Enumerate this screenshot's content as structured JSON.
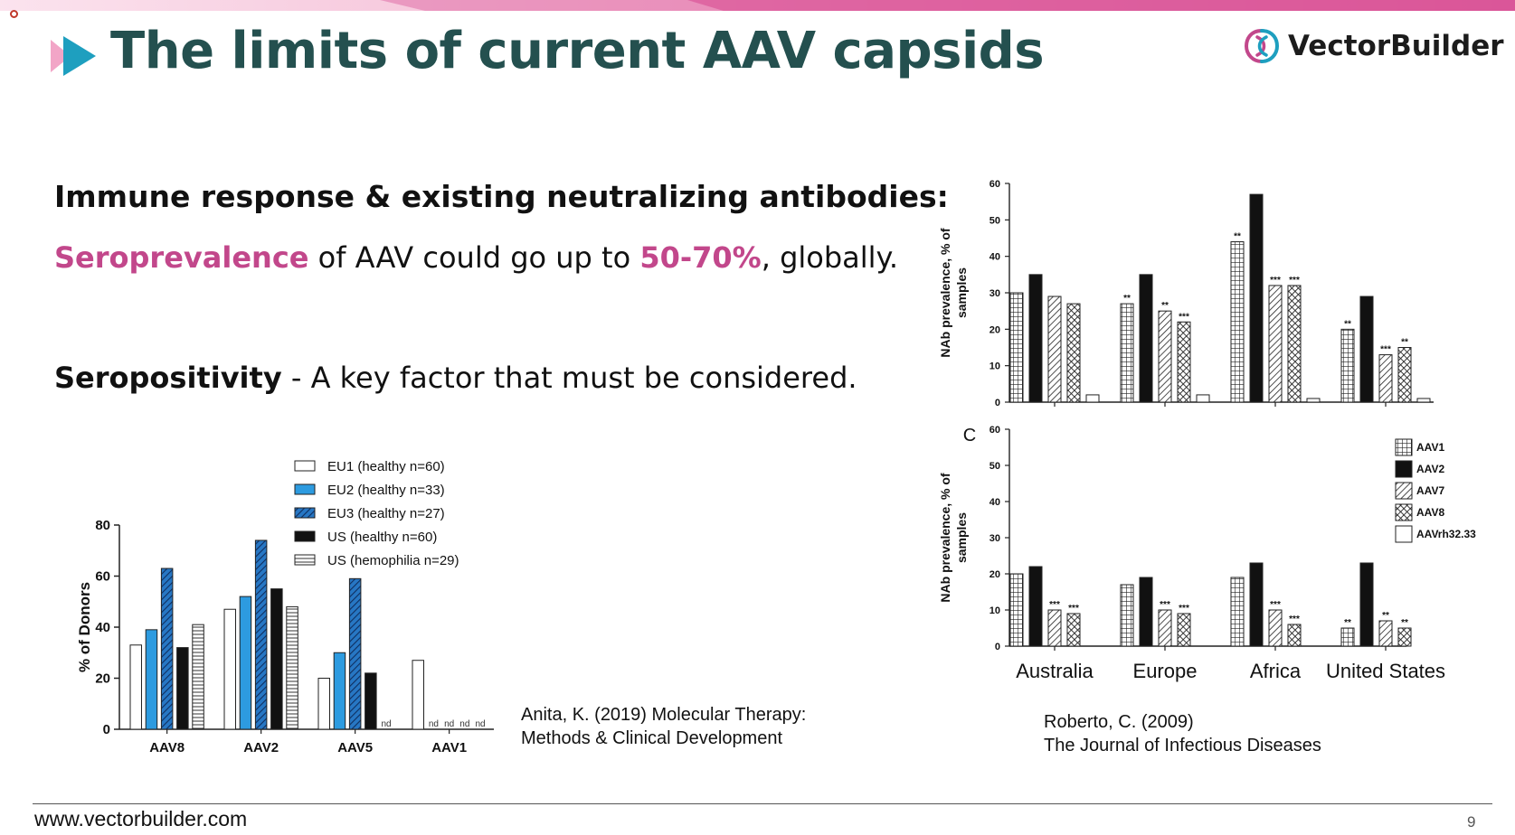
{
  "slide": {
    "title": "The limits of current AAV capsids",
    "logo_text": "VectorBuilder",
    "heading": "Immune response & existing neutralizing antibodies:",
    "sero_highlight": "Seroprevalence",
    "sero_mid": " of AAV could go up to ",
    "sero_pct": "50-70%",
    "sero_end": ", globally.",
    "seropos_bold": "Seropositivity",
    "seropos_rest": " - A key factor that must be considered.",
    "cite_left": [
      "Anita, K. (2019) Molecular Therapy:",
      "Methods & Clinical Development"
    ],
    "cite_right": [
      "Roberto, C. (2009)",
      "The Journal of Infectious Diseases"
    ],
    "footer_url": "www.vectorbuilder.com",
    "page_number": "9",
    "colors": {
      "title": "#24504f",
      "highlight": "#c2478b",
      "band_left": "#f7c9dd",
      "band_right": "#d9589b"
    }
  },
  "chart_data": [
    {
      "id": "donors",
      "type": "bar",
      "categories": [
        "AAV8",
        "AAV2",
        "AAV5",
        "AAV1"
      ],
      "ylabel": "% of Donors",
      "ylim": [
        0,
        80
      ],
      "yticks": [
        0,
        20,
        40,
        60,
        80
      ],
      "legend_position": "top",
      "series": [
        {
          "name": "EU1 (healthy n=60)",
          "style": "white",
          "values": [
            33,
            47,
            20,
            27
          ]
        },
        {
          "name": "EU2 (healthy n=33)",
          "style": "blue",
          "values": [
            39,
            52,
            30,
            null
          ]
        },
        {
          "name": "EU3 (healthy n=27)",
          "style": "darkblue-hatch",
          "values": [
            63,
            74,
            59,
            null
          ]
        },
        {
          "name": "US (healthy n=60)",
          "style": "black",
          "values": [
            32,
            55,
            22,
            null
          ]
        },
        {
          "name": "US (hemophilia n=29)",
          "style": "hstripe",
          "values": [
            41,
            48,
            null,
            null
          ]
        }
      ],
      "annotations": [
        "nd"
      ]
    },
    {
      "id": "nab-top",
      "type": "bar",
      "categories": [
        "Australia",
        "Europe",
        "Africa",
        "United States"
      ],
      "ylabel": "NAb prevalence, % of samples",
      "ylim": [
        0,
        60
      ],
      "yticks": [
        0,
        10,
        20,
        30,
        40,
        50,
        60
      ],
      "series": [
        {
          "name": "AAV1",
          "style": "grid",
          "values": [
            30,
            27,
            44,
            20
          ],
          "sig": [
            "",
            "**",
            "**",
            "**"
          ]
        },
        {
          "name": "AAV2",
          "style": "black",
          "values": [
            35,
            35,
            57,
            29
          ],
          "sig": [
            "",
            "",
            "",
            ""
          ]
        },
        {
          "name": "AAV7",
          "style": "diag",
          "values": [
            29,
            25,
            32,
            13
          ],
          "sig": [
            "",
            "**",
            "***",
            "***"
          ]
        },
        {
          "name": "AAV8",
          "style": "cross",
          "values": [
            27,
            22,
            32,
            15
          ],
          "sig": [
            "",
            "***",
            "***",
            "**"
          ]
        },
        {
          "name": "AAVrh32.33",
          "style": "white",
          "values": [
            2,
            2,
            1,
            1
          ],
          "sig": [
            "",
            "",
            "",
            ""
          ]
        }
      ]
    },
    {
      "id": "nab-bottom",
      "type": "bar",
      "panel_label": "C",
      "categories": [
        "Australia",
        "Europe",
        "Africa",
        "United States"
      ],
      "ylabel": "NAb prevalence, % of samples",
      "ylim": [
        0,
        60
      ],
      "yticks": [
        0,
        10,
        20,
        30,
        40,
        50,
        60
      ],
      "legend_position": "right",
      "series": [
        {
          "name": "AAV1",
          "style": "grid",
          "values": [
            20,
            17,
            19,
            5
          ],
          "sig": [
            "",
            "",
            "",
            "**"
          ]
        },
        {
          "name": "AAV2",
          "style": "black",
          "values": [
            22,
            19,
            23,
            23
          ],
          "sig": [
            "",
            "",
            "",
            ""
          ]
        },
        {
          "name": "AAV7",
          "style": "diag",
          "values": [
            10,
            10,
            10,
            7
          ],
          "sig": [
            "***",
            "***",
            "***",
            "**"
          ]
        },
        {
          "name": "AAV8",
          "style": "cross",
          "values": [
            9,
            9,
            6,
            5
          ],
          "sig": [
            "***",
            "***",
            "***",
            "**"
          ]
        },
        {
          "name": "AAVrh32.33",
          "style": "white",
          "values": [
            0,
            0,
            0,
            0
          ],
          "sig": [
            "",
            "",
            "",
            ""
          ]
        }
      ]
    }
  ]
}
